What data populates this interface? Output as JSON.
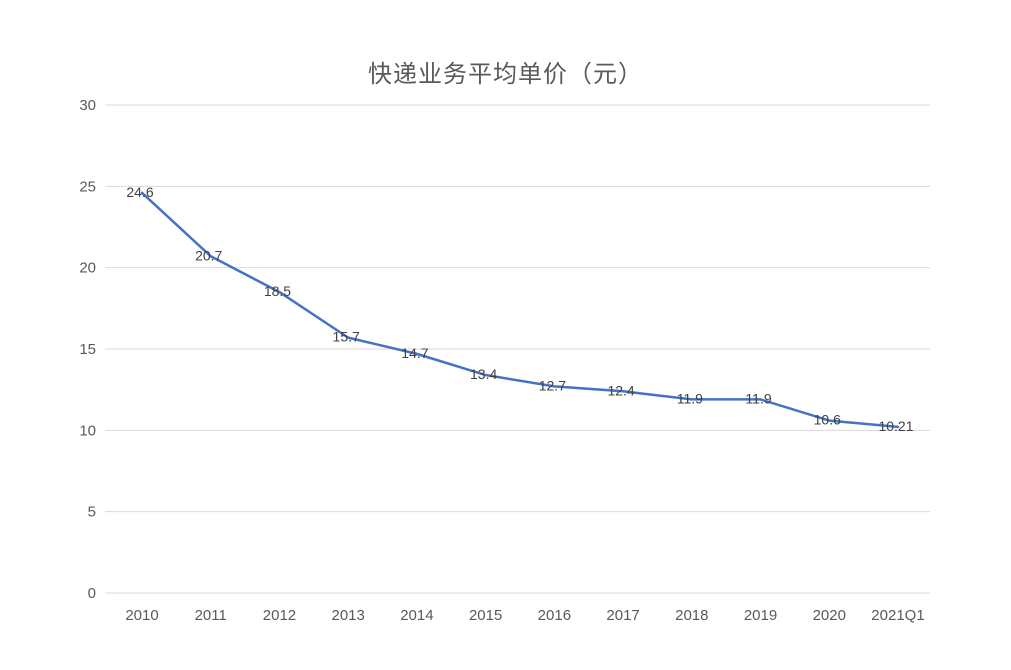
{
  "chart_data": {
    "type": "line",
    "title": "快递业务平均单价（元）",
    "categories": [
      "2010",
      "2011",
      "2012",
      "2013",
      "2014",
      "2015",
      "2016",
      "2017",
      "2018",
      "2019",
      "2020",
      "2021Q1"
    ],
    "series": [
      {
        "name": "快递业务平均单价",
        "values": [
          24.6,
          20.7,
          18.5,
          15.7,
          14.7,
          13.4,
          12.7,
          12.4,
          11.9,
          11.9,
          10.6,
          10.21
        ],
        "data_labels": [
          "24.6",
          "20.7",
          "18.5",
          "15.7",
          "14.7",
          "13.4",
          "12.7",
          "12.4",
          "11.9",
          "11.9",
          "10.6",
          "10.21"
        ]
      }
    ],
    "xlabel": "",
    "ylabel": "",
    "ylim": [
      0,
      30
    ],
    "yticks": [
      0,
      5,
      10,
      15,
      20,
      25,
      30
    ],
    "grid": "horizontal",
    "legend": "none",
    "colors": {
      "line": "#4472C4",
      "grid": "#D9D9D9",
      "axis_text": "#595959",
      "data_label_text": "#404040",
      "title_text": "#595959",
      "background": "#FFFFFF"
    }
  }
}
